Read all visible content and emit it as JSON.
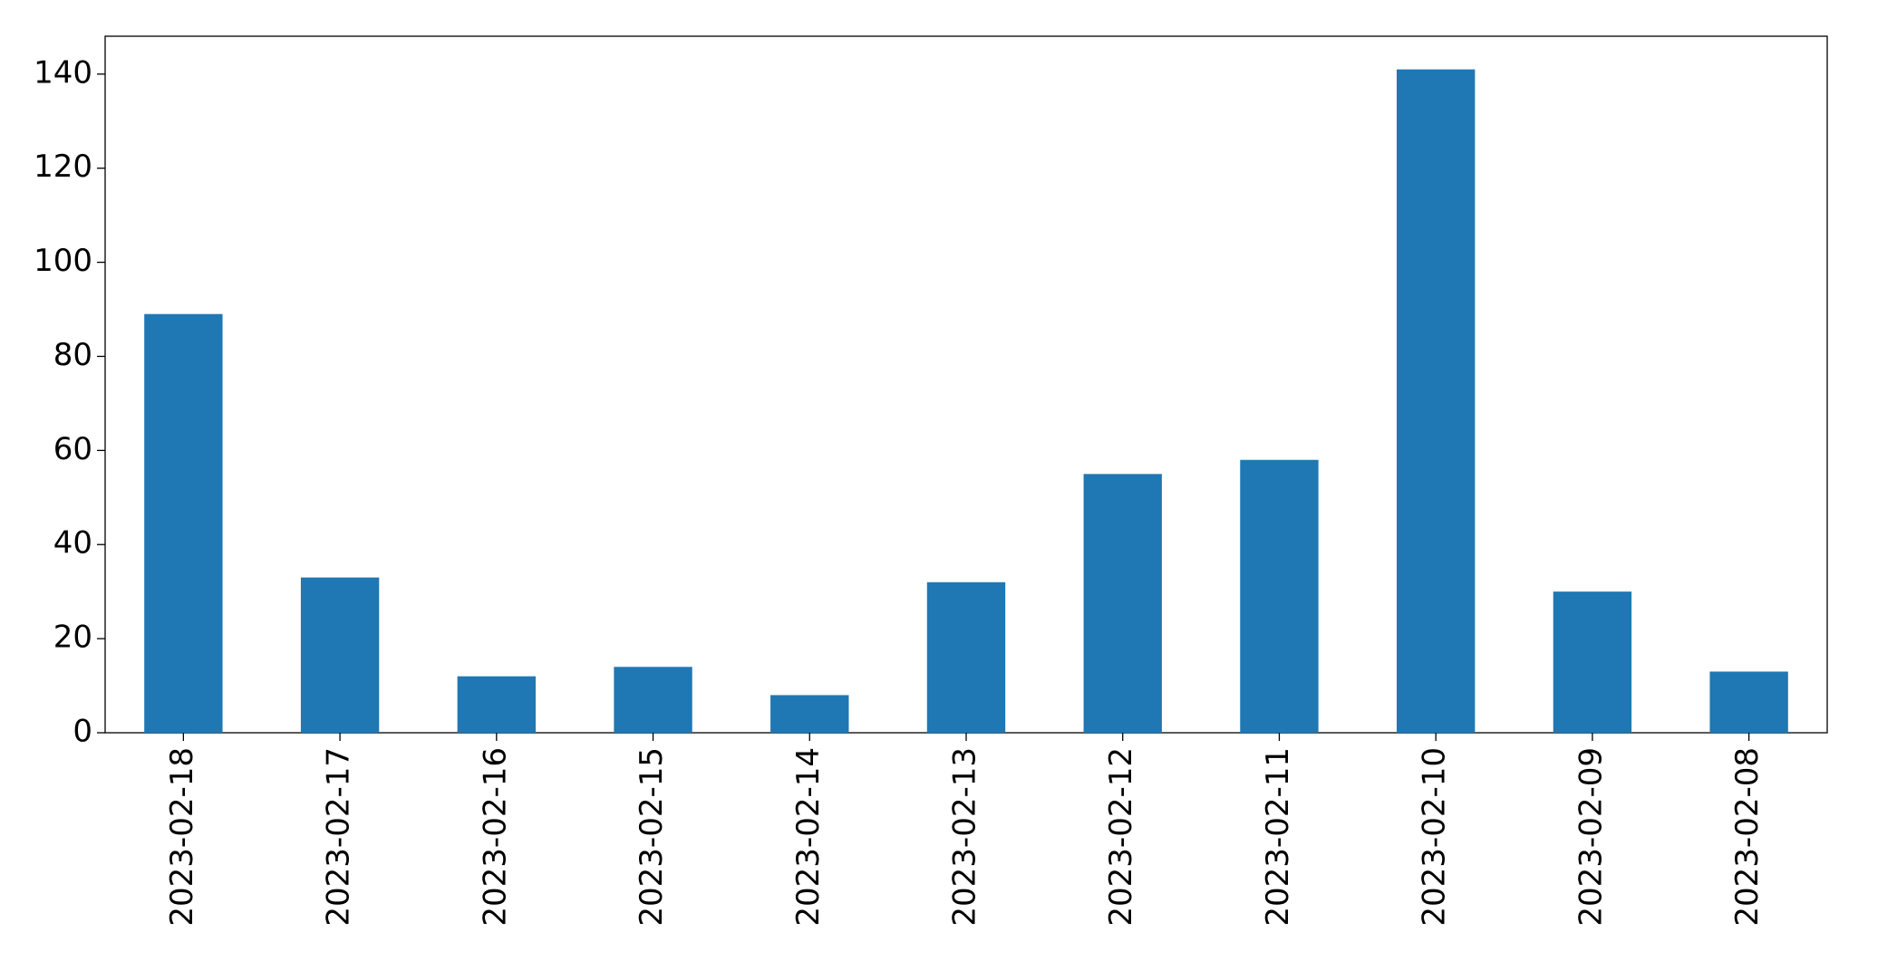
{
  "chart_data": {
    "type": "bar",
    "categories": [
      "2023-02-18",
      "2023-02-17",
      "2023-02-16",
      "2023-02-15",
      "2023-02-14",
      "2023-02-13",
      "2023-02-12",
      "2023-02-11",
      "2023-02-10",
      "2023-02-09",
      "2023-02-08"
    ],
    "values": [
      89,
      33,
      12,
      14,
      8,
      32,
      55,
      58,
      141,
      30,
      13
    ],
    "color": "#1f77b4",
    "ylim": [
      0,
      148.05
    ],
    "yticks": [
      0,
      20,
      40,
      60,
      80,
      100,
      120,
      140
    ],
    "grid": false
  }
}
